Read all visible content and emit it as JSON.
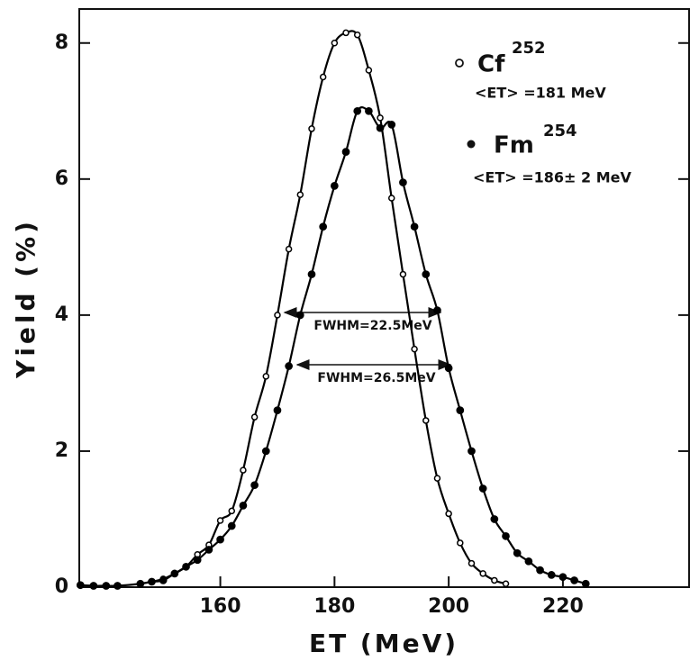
{
  "chart_data": {
    "type": "line",
    "xlabel": "ET (MeV)",
    "ylabel": "Yield (%)",
    "xlim": [
      135.3,
      242.1
    ],
    "ylim": [
      0,
      8.5
    ],
    "xticks": [
      160,
      180,
      200,
      220
    ],
    "yticks": [
      0,
      2,
      4,
      6,
      8
    ],
    "series": [
      {
        "name": "Cf",
        "superscript": "252",
        "mean_label": "<ET> =181 MeV",
        "marker": "open",
        "color": "#000000",
        "x": [
          146,
          148,
          150,
          152,
          154,
          156,
          158,
          160,
          162,
          164,
          166,
          168,
          170,
          172,
          174,
          176,
          178,
          180,
          182,
          184,
          186,
          188,
          190,
          192,
          194,
          196,
          198,
          200,
          202,
          204,
          206,
          208,
          210
        ],
        "values": [
          0.05,
          0.08,
          0.12,
          0.2,
          0.3,
          0.48,
          0.62,
          0.98,
          1.12,
          1.72,
          2.5,
          3.1,
          4.0,
          4.97,
          5.77,
          6.74,
          7.5,
          8.0,
          8.15,
          8.12,
          7.6,
          6.9,
          5.72,
          4.6,
          3.5,
          2.45,
          1.6,
          1.08,
          0.65,
          0.35,
          0.2,
          0.1,
          0.05
        ]
      },
      {
        "name": "Fm",
        "superscript": "254",
        "mean_label": "<ET> =186± 2 MeV",
        "marker": "filled",
        "color": "#000000",
        "x": [
          135.5,
          137.8,
          140,
          142,
          146,
          148,
          150,
          152,
          154,
          156,
          158,
          160,
          162,
          164,
          166,
          168,
          170,
          172,
          174,
          176,
          178,
          180,
          182,
          184,
          186,
          188,
          190,
          192,
          194,
          196,
          198,
          200,
          202,
          204,
          206,
          208,
          210,
          212,
          214,
          216,
          218,
          220,
          222,
          224
        ],
        "values": [
          0.03,
          0.02,
          0.02,
          0.02,
          0.05,
          0.08,
          0.1,
          0.2,
          0.3,
          0.4,
          0.55,
          0.7,
          0.9,
          1.2,
          1.5,
          2.0,
          2.6,
          3.25,
          4.0,
          4.6,
          5.3,
          5.9,
          6.4,
          7.0,
          7.0,
          6.75,
          6.8,
          5.95,
          5.3,
          4.6,
          4.07,
          3.22,
          2.6,
          2.0,
          1.45,
          1.0,
          0.75,
          0.5,
          0.38,
          0.25,
          0.18,
          0.15,
          0.1,
          0.05
        ]
      }
    ],
    "annotations": [
      "FWHM=22.5MeV",
      "FWHM=26.5MeV"
    ]
  }
}
